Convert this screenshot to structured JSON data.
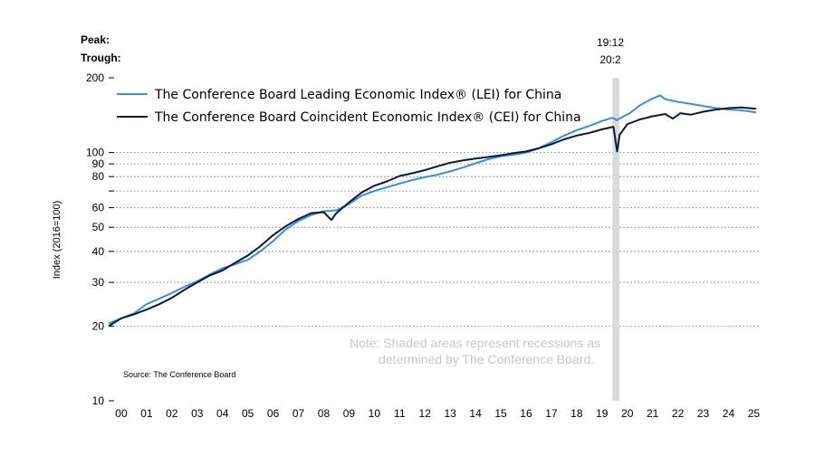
{
  "chart_data": {
    "type": "line",
    "ylabel": "Index (2016=100)",
    "y_scale": "log",
    "ylim": [
      10,
      200
    ],
    "y_ticks": [
      200,
      100,
      90,
      80,
      70,
      60,
      50,
      40,
      30,
      20,
      10
    ],
    "y_tick_labels": [
      "200",
      "100",
      "90",
      "80",
      "",
      "60",
      "50",
      "40",
      "30",
      "20",
      "10"
    ],
    "x_tick_labels": [
      "00",
      "01",
      "02",
      "03",
      "04",
      "05",
      "06",
      "07",
      "08",
      "09",
      "10",
      "11",
      "12",
      "13",
      "14",
      "15",
      "16",
      "17",
      "18",
      "19",
      "20",
      "21",
      "22",
      "23",
      "24",
      "25"
    ],
    "xlim": [
      2000.0,
      2025.7
    ],
    "grid": "dashed horizontal at y ticks",
    "legend_position": "top-left",
    "recession": {
      "peak": "19:12",
      "trough": "20:2",
      "start": 2019.95,
      "end": 2020.15,
      "color": "#d9d9d9"
    },
    "peak_label": "Peak:",
    "trough_label": "Trough:",
    "series": [
      {
        "name": "The Conference Board Leading Economic Index® (LEI) for China",
        "color": "#3b8de0",
        "x": [
          2000.0,
          2000.5,
          2001.0,
          2001.5,
          2002.0,
          2002.5,
          2003.0,
          2003.5,
          2004.0,
          2004.5,
          2005.0,
          2005.5,
          2006.0,
          2006.5,
          2007.0,
          2007.5,
          2008.0,
          2008.5,
          2009.0,
          2009.5,
          2010.0,
          2010.5,
          2011.0,
          2011.5,
          2012.0,
          2012.5,
          2013.0,
          2013.5,
          2014.0,
          2014.5,
          2015.0,
          2015.5,
          2016.0,
          2016.5,
          2017.0,
          2017.5,
          2018.0,
          2018.5,
          2019.0,
          2019.5,
          2019.9,
          2020.1,
          2020.3,
          2020.6,
          2021.0,
          2021.5,
          2021.8,
          2022.0,
          2022.5,
          2023.0,
          2023.5,
          2024.0,
          2024.5,
          2025.0,
          2025.6
        ],
        "y": [
          20.5,
          21.5,
          22.5,
          24.5,
          25.8,
          27.2,
          28.8,
          30.3,
          32.3,
          34.2,
          35.5,
          37.0,
          40.0,
          44.0,
          49.0,
          53.0,
          56.0,
          58.0,
          58.5,
          62.0,
          67.0,
          70.0,
          72.5,
          75.0,
          77.5,
          79.5,
          81.5,
          84.0,
          87.0,
          90.5,
          94.0,
          96.5,
          98.0,
          100.0,
          104.0,
          110.0,
          117.0,
          123.0,
          128.0,
          134.0,
          138.0,
          135.0,
          139.0,
          144.0,
          155.0,
          165.0,
          170.0,
          164.0,
          160.0,
          157.0,
          154.0,
          151.0,
          149.0,
          148.0,
          145.0
        ]
      },
      {
        "name": "The Conference Board Coincident Economic Index® (CEI) for China",
        "color": "#0d1b2e",
        "x": [
          2000.0,
          2000.5,
          2001.0,
          2001.5,
          2002.0,
          2002.5,
          2003.0,
          2003.5,
          2004.0,
          2004.5,
          2005.0,
          2005.5,
          2006.0,
          2006.5,
          2007.0,
          2007.5,
          2008.0,
          2008.5,
          2008.8,
          2009.0,
          2009.5,
          2010.0,
          2010.5,
          2011.0,
          2011.5,
          2012.0,
          2012.5,
          2013.0,
          2013.5,
          2014.0,
          2014.5,
          2015.0,
          2015.5,
          2016.0,
          2016.5,
          2017.0,
          2017.5,
          2018.0,
          2018.5,
          2019.0,
          2019.5,
          2019.95,
          2020.1,
          2020.2,
          2020.5,
          2021.0,
          2021.5,
          2022.0,
          2022.3,
          2022.6,
          2023.0,
          2023.5,
          2024.0,
          2024.5,
          2025.0,
          2025.6
        ],
        "y": [
          20.0,
          21.5,
          22.3,
          23.3,
          24.5,
          26.0,
          28.0,
          30.0,
          32.0,
          33.5,
          36.0,
          38.5,
          42.0,
          46.5,
          50.5,
          54.0,
          57.0,
          57.5,
          53.5,
          57.0,
          63.0,
          69.0,
          73.5,
          76.5,
          80.5,
          82.5,
          85.0,
          88.0,
          91.0,
          93.0,
          94.5,
          96.0,
          97.5,
          99.5,
          101.0,
          104.0,
          108.0,
          113.0,
          117.0,
          120.0,
          124.0,
          127.0,
          101.0,
          118.0,
          130.0,
          136.0,
          140.0,
          143.0,
          137.0,
          144.0,
          142.0,
          146.0,
          149.0,
          151.0,
          152.0,
          150.0
        ]
      }
    ],
    "notes": [
      "Note: Shaded areas represent recessions as",
      "determined by The Conference Board."
    ],
    "source": "Source: The Conference Board"
  }
}
